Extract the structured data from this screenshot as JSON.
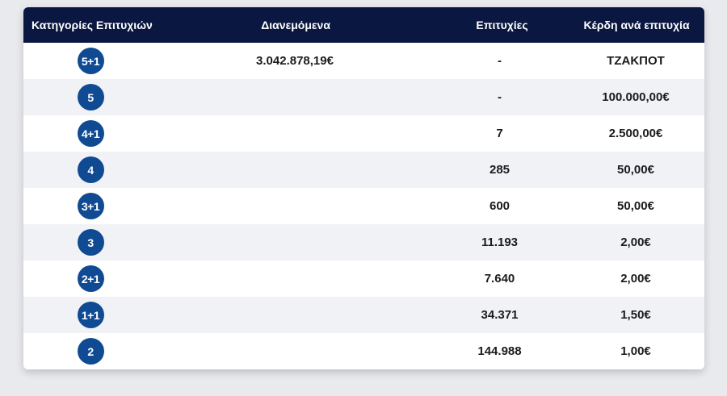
{
  "table": {
    "headers": {
      "category": "Κατηγορίες Επιτυχιών",
      "distributed": "Διανεμόμενα",
      "winners": "Επιτυχίες",
      "prize": "Κέρδη ανά επιτυχία"
    },
    "rows": [
      {
        "category": "5+1",
        "distributed": "3.042.878,19€",
        "winners": "-",
        "prize": "ΤΖΑΚΠΟΤ"
      },
      {
        "category": "5",
        "distributed": "",
        "winners": "-",
        "prize": "100.000,00€"
      },
      {
        "category": "4+1",
        "distributed": "",
        "winners": "7",
        "prize": "2.500,00€"
      },
      {
        "category": "4",
        "distributed": "",
        "winners": "285",
        "prize": "50,00€"
      },
      {
        "category": "3+1",
        "distributed": "",
        "winners": "600",
        "prize": "50,00€"
      },
      {
        "category": "3",
        "distributed": "",
        "winners": "11.193",
        "prize": "2,00€"
      },
      {
        "category": "2+1",
        "distributed": "",
        "winners": "7.640",
        "prize": "2,00€"
      },
      {
        "category": "1+1",
        "distributed": "",
        "winners": "34.371",
        "prize": "1,50€"
      },
      {
        "category": "2",
        "distributed": "",
        "winners": "144.988",
        "prize": "1,00€"
      }
    ]
  },
  "colors": {
    "header_bg": "#0a1740",
    "badge_bg": "#104a92",
    "row_alt_bg": "#f1f2f6"
  }
}
